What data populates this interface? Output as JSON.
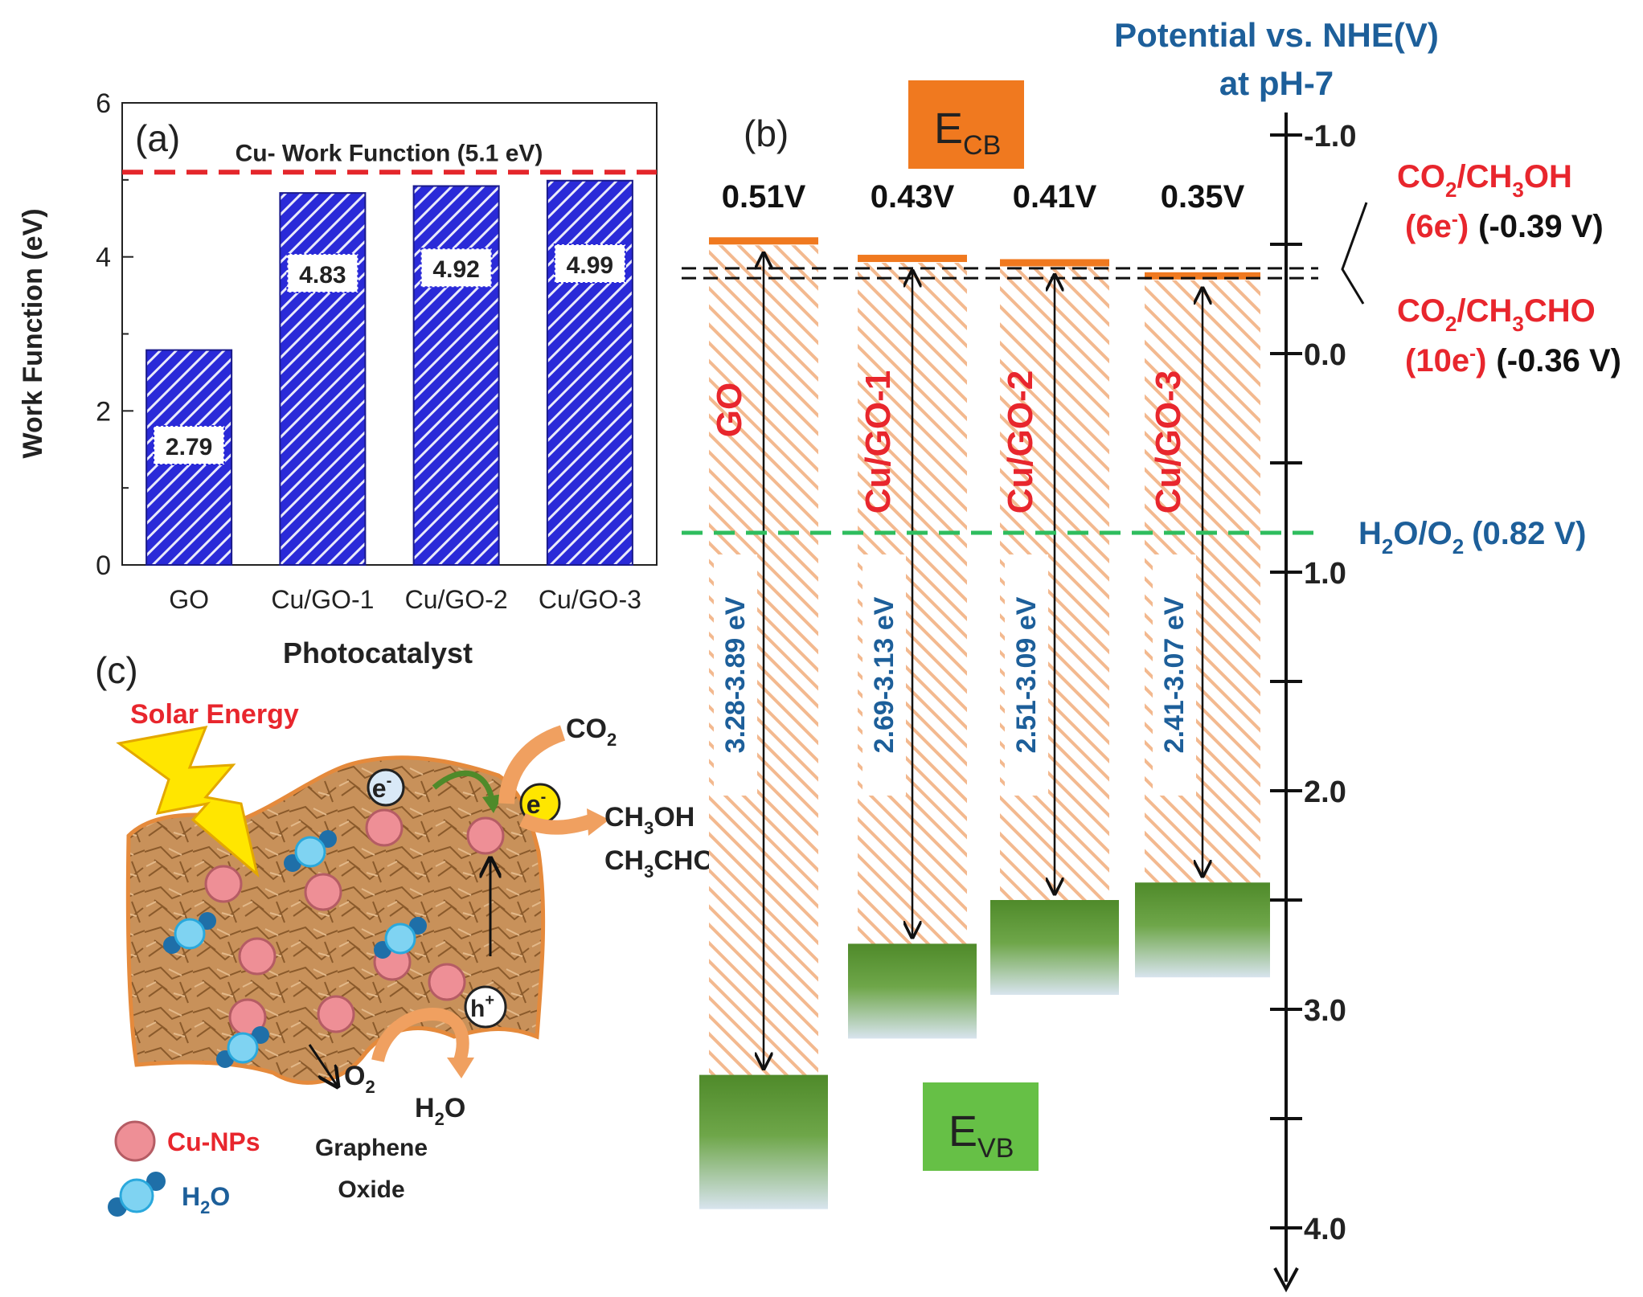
{
  "colors": {
    "bar_blue": "#2a2ad8",
    "ref_red": "#e4262b",
    "label_red": "#e8262d",
    "label_blue": "#1d5f9a",
    "ecb_orange": "#f0791f",
    "evb_green": "#66c046",
    "vb_green_dark": "#4f8a2a",
    "h2o_o2_green": "#2ebd5e",
    "hatch_orange": "#f3b98f",
    "cu_np_pink": "#ee8f96",
    "graphene_brown": "#c8915a",
    "water_blue": "#2aa8dc"
  },
  "chart_data": [
    {
      "type": "bar",
      "panel_label": "(a)",
      "categories": [
        "GO",
        "Cu/GO-1",
        "Cu/GO-2",
        "Cu/GO-3"
      ],
      "values": [
        2.79,
        4.83,
        4.92,
        4.99
      ],
      "value_labels": [
        "2.79",
        "4.83",
        "4.92",
        "4.99"
      ],
      "xlabel": "Photocatalyst",
      "ylabel": "Work Function (eV)",
      "ylim": [
        0,
        6
      ],
      "yticks": [
        0,
        2,
        4,
        6
      ],
      "ytick_labels": [
        "0",
        "2",
        "4",
        "6"
      ],
      "reference_line": {
        "value": 5.1,
        "label": "Cu- Work Function (5.1 eV)",
        "style": "dashed"
      },
      "grid": false
    },
    {
      "type": "band-diagram",
      "panel_label": "(b)",
      "axis_title_line1": "Potential vs. NHE(V)",
      "axis_title_line2": "at pH-7",
      "ylim": [
        -1.2,
        4.2
      ],
      "ytick_labels": [
        {
          "value": -1.0,
          "text": "-1.0"
        },
        {
          "value": 0.0,
          "text": "0.0"
        },
        {
          "value": 1.0,
          "text": "1.0"
        },
        {
          "value": 2.0,
          "text": "2.0"
        },
        {
          "value": 3.0,
          "text": "3.0"
        },
        {
          "value": 4.0,
          "text": "4.0"
        }
      ],
      "minor_ticks": [
        -0.5,
        0.5,
        1.5,
        2.5,
        3.5
      ],
      "ecb_label": {
        "main": "E",
        "sub": "CB"
      },
      "evb_label": {
        "main": "E",
        "sub": "VB"
      },
      "samples": [
        {
          "name": "GO",
          "cb": -0.51,
          "cb_label": "0.51V",
          "vb": 3.3,
          "gap_label": "3.28-3.89 eV"
        },
        {
          "name": "Cu/GO-1",
          "cb": -0.43,
          "cb_label": "0.43V",
          "vb": 2.7,
          "gap_label": "2.69-3.13 eV"
        },
        {
          "name": "Cu/GO-2",
          "cb": -0.41,
          "cb_label": "0.41V",
          "vb": 2.5,
          "gap_label": "2.51-3.09 eV"
        },
        {
          "name": "Cu/GO-3",
          "cb": -0.35,
          "cb_label": "0.35V",
          "vb": 2.42,
          "gap_label": "2.41-3.07 eV"
        }
      ],
      "redox_levels": [
        {
          "value": -0.39,
          "species_main": "CO",
          "species_sub": "2",
          "species_rest": "/CH",
          "species_sub2": "3",
          "species_end": "OH",
          "electrons_main": "(6e",
          "electrons_sup": "-",
          "electrons_end": ")",
          "potential": "(-0.39 V)"
        },
        {
          "value": -0.36,
          "species_main": "CO",
          "species_sub": "2",
          "species_rest": "/CH",
          "species_sub2": "3",
          "species_end": "CHO",
          "electrons_main": "(10e",
          "electrons_sup": "-",
          "electrons_end": ")",
          "potential": "(-0.36 V)"
        }
      ],
      "water_oxidation": {
        "value": 0.82,
        "main": "H",
        "sub": "2",
        "rest": "O/O",
        "sub2": "2",
        "potential": "(0.82 V)"
      }
    }
  ],
  "schematic": {
    "panel_label": "(c)",
    "solar_label": "Solar Energy",
    "co2": {
      "main": "CO",
      "sub": "2"
    },
    "product_1": {
      "a": "CH",
      "sub": "3",
      "b": "OH"
    },
    "product_2": {
      "a": "CH",
      "sub": "3",
      "b": "CHO"
    },
    "o2": {
      "main": "O",
      "sub": "2"
    },
    "h2o_product": {
      "main": "H",
      "sub": "2",
      "b": "O"
    },
    "electron": "e",
    "electron_sup": "-",
    "hole": "h",
    "hole_sup": "+",
    "graphene_label_1": "Graphene",
    "graphene_label_2": "Oxide",
    "legend_cu": "Cu-NPs",
    "legend_water": {
      "main": "H",
      "sub": "2",
      "b": "O"
    }
  }
}
